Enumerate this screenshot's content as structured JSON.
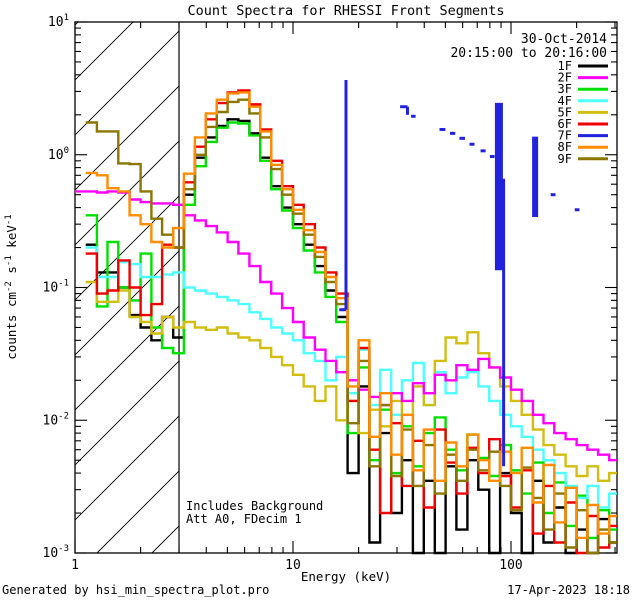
{
  "title": "Count Spectra for RHESSI Front Segments",
  "header": {
    "date": "30-Oct-2014",
    "time_range": "20:15:00 to 20:16:00"
  },
  "annotations": {
    "line1": "Includes Background",
    "line2": "Att A0, FDecim 1"
  },
  "footer": {
    "left": "Generated by hsi_min_spectra_plot.pro",
    "right": "17-Apr-2023 18:18"
  },
  "chart_data": {
    "type": "line",
    "subtype": "step-histogram-spectra",
    "x_scale": "log",
    "y_scale": "log",
    "xlabel": "Energy (keV)",
    "ylabel": "counts cm-2 s-1 keV-1",
    "ylabel_parts": [
      {
        "t": "counts cm"
      },
      {
        "t": "-2",
        "sup": true
      },
      {
        "t": " s"
      },
      {
        "t": "-1",
        "sup": true
      },
      {
        "t": " keV"
      },
      {
        "t": "-1",
        "sup": true
      }
    ],
    "xlim": [
      1,
      306
    ],
    "ylim": [
      0.001,
      10
    ],
    "x_major_ticks": [
      1,
      10,
      100
    ],
    "x_tick_labels": [
      "1",
      "10",
      "100"
    ],
    "x_minor_ticks": [
      2,
      3,
      4,
      5,
      6,
      7,
      8,
      9,
      20,
      30,
      40,
      50,
      60,
      70,
      80,
      90,
      200,
      300
    ],
    "y_tick_exponents": [
      1,
      0,
      -1,
      -2,
      -3
    ],
    "grid": false,
    "legend_position": "top-right-inside",
    "hatch_region": {
      "e_min": 1,
      "e_max": 3,
      "style": "diagonal-hatch"
    },
    "threshold_line_kev": 3,
    "energies": [
      1.0,
      1.12,
      1.26,
      1.41,
      1.58,
      1.78,
      2.0,
      2.24,
      2.51,
      2.82,
      3.16,
      3.55,
      3.98,
      4.47,
      5.01,
      5.62,
      6.31,
      7.08,
      7.94,
      8.91,
      10.0,
      11.2,
      12.6,
      14.1,
      15.8,
      17.8,
      20.0,
      22.4,
      25.1,
      28.2,
      31.6,
      35.5,
      39.8,
      44.7,
      50.1,
      56.2,
      63.1,
      70.8,
      79.4,
      89.1,
      100,
      112,
      126,
      141,
      158,
      178,
      200,
      224,
      251,
      282
    ],
    "bin_end": 306,
    "draw_order": [
      "1F",
      "3F",
      "4F",
      "5F",
      "6F",
      "2F",
      "9F",
      "8F",
      "7F"
    ],
    "series": [
      {
        "name": "1F",
        "color": "#000000",
        "values": [
          null,
          0.21,
          0.13,
          0.13,
          0.1,
          0.062,
          0.05,
          0.04,
          0.06,
          0.042,
          0.5,
          0.95,
          1.35,
          1.65,
          1.85,
          1.8,
          1.45,
          0.95,
          0.58,
          0.4,
          0.3,
          0.21,
          0.145,
          0.095,
          0.06,
          0.004,
          0.018,
          0.0012,
          0.008,
          0.002,
          0.005,
          0.001,
          0.0035,
          0.001,
          0.0045,
          0.0015,
          0.005,
          0.003,
          0.001,
          0.004,
          0.002,
          0.001,
          0.0035,
          0.0012,
          0.0022,
          0.001,
          0.0015,
          0.001,
          0.0018,
          0.0012
        ]
      },
      {
        "name": "2F",
        "color": "#FF00FF",
        "values": [
          0.53,
          0.53,
          0.52,
          0.53,
          0.52,
          0.46,
          0.44,
          0.43,
          0.43,
          0.42,
          0.35,
          0.32,
          0.29,
          0.26,
          0.22,
          0.18,
          0.145,
          0.11,
          0.09,
          0.07,
          0.055,
          0.042,
          0.034,
          0.028,
          0.023,
          0.02,
          0.017,
          0.015,
          0.013,
          0.016,
          0.014,
          0.019,
          0.016,
          0.022,
          0.02,
          0.026,
          0.024,
          0.029,
          0.025,
          0.021,
          0.017,
          0.014,
          0.011,
          0.0095,
          0.008,
          0.0072,
          0.0065,
          0.006,
          0.0055,
          0.005
        ]
      },
      {
        "name": "3F",
        "color": "#00E100",
        "values": [
          null,
          0.35,
          0.072,
          0.22,
          0.1,
          0.08,
          0.18,
          0.05,
          0.035,
          0.032,
          0.42,
          0.82,
          1.25,
          1.6,
          1.75,
          1.72,
          1.4,
          0.9,
          0.55,
          0.38,
          0.28,
          0.19,
          0.13,
          0.085,
          0.055,
          0.008,
          0.025,
          0.005,
          0.012,
          0.004,
          0.009,
          0.0045,
          0.008,
          0.0105,
          0.006,
          0.0042,
          0.0078,
          0.0052,
          0.0038,
          0.0065,
          0.0042,
          0.0028,
          0.0048,
          0.002,
          0.0034,
          0.0016,
          0.0027,
          0.0013,
          0.0021,
          0.0015
        ]
      },
      {
        "name": "4F",
        "color": "#4DFFFF",
        "values": [
          null,
          0.2,
          0.12,
          0.12,
          0.155,
          0.15,
          0.12,
          0.12,
          0.125,
          0.13,
          0.1,
          0.095,
          0.09,
          0.085,
          0.08,
          0.075,
          0.065,
          0.058,
          0.05,
          0.045,
          0.04,
          0.032,
          0.028,
          0.02,
          0.03,
          0.016,
          0.034,
          0.013,
          0.024,
          0.011,
          0.02,
          0.027,
          0.013,
          0.023,
          0.016,
          0.021,
          0.023,
          0.018,
          0.014,
          0.011,
          0.009,
          0.0075,
          0.006,
          0.005,
          0.004,
          0.0032,
          0.0026,
          0.0032,
          0.0022,
          0.0028
        ]
      },
      {
        "name": "5F",
        "color": "#D1BE11",
        "values": [
          null,
          0.11,
          0.078,
          0.078,
          0.095,
          0.06,
          0.055,
          0.045,
          0.06,
          0.05,
          0.055,
          0.05,
          0.048,
          0.05,
          0.045,
          0.042,
          0.04,
          0.035,
          0.03,
          0.026,
          0.022,
          0.018,
          0.014,
          0.018,
          0.01,
          0.014,
          0.008,
          0.012,
          0.009,
          0.014,
          0.011,
          0.018,
          0.013,
          0.028,
          0.042,
          0.038,
          0.046,
          0.032,
          0.025,
          0.018,
          0.014,
          0.011,
          0.0085,
          0.0065,
          0.0055,
          0.0045,
          0.0038,
          0.0045,
          0.0035,
          0.004
        ]
      },
      {
        "name": "6F",
        "color": "#EE0000",
        "values": [
          null,
          0.18,
          0.09,
          0.095,
          0.16,
          0.1,
          0.062,
          0.075,
          0.21,
          0.2,
          0.62,
          1.15,
          1.85,
          2.45,
          2.95,
          3.05,
          2.4,
          1.55,
          0.9,
          0.58,
          0.42,
          0.3,
          0.2,
          0.13,
          0.09,
          0.014,
          0.035,
          0.006,
          0.002,
          0.0095,
          0.0032,
          0.007,
          0.0022,
          0.0085,
          0.0048,
          0.0028,
          0.0062,
          0.004,
          0.0072,
          0.0038,
          0.0022,
          0.0042,
          0.0014,
          0.0032,
          0.0012,
          0.0024,
          0.001,
          0.0019,
          0.0011,
          0.0016
        ]
      },
      {
        "name": "7F",
        "color": "#2222DE",
        "segments": [
          {
            "t": "v",
            "e": 17.5,
            "v1": 3.66,
            "v2": 0.068,
            "w": 3
          },
          {
            "t": "h",
            "e1": 16.3,
            "e2": 17.5,
            "v": 0.068,
            "w": 3
          },
          {
            "t": "h",
            "e1": 31.0,
            "e2": 33.5,
            "v": 2.3,
            "w": 3
          },
          {
            "t": "v",
            "e": 33.5,
            "v1": 2.3,
            "v2": 2.0,
            "w": 3
          },
          {
            "t": "h",
            "e1": 34.8,
            "e2": 36.5,
            "v": 1.95,
            "w": 3
          },
          {
            "t": "h",
            "e1": 47.0,
            "e2": 50.0,
            "v": 1.55,
            "w": 3
          },
          {
            "t": "h",
            "e1": 52.5,
            "e2": 55.5,
            "v": 1.45,
            "w": 3
          },
          {
            "t": "h",
            "e1": 58.0,
            "e2": 61.5,
            "v": 1.33,
            "w": 3
          },
          {
            "t": "h",
            "e1": 64.5,
            "e2": 68.0,
            "v": 1.2,
            "w": 3
          },
          {
            "t": "h",
            "e1": 72.5,
            "e2": 76.5,
            "v": 1.07,
            "w": 3
          },
          {
            "t": "h",
            "e1": 80.0,
            "e2": 84.0,
            "v": 0.97,
            "w": 3
          },
          {
            "t": "v",
            "e": 88.0,
            "v1": 2.46,
            "v2": 0.135,
            "w": 8
          },
          {
            "t": "v",
            "e": 92.5,
            "v1": 0.66,
            "v2": 0.0045,
            "w": 3
          },
          {
            "t": "v",
            "e": 129.0,
            "v1": 1.37,
            "v2": 0.34,
            "w": 6
          },
          {
            "t": "h",
            "e1": 152.0,
            "e2": 160.0,
            "v": 0.5,
            "w": 3
          },
          {
            "t": "h",
            "e1": 196.0,
            "e2": 206.0,
            "v": 0.385,
            "w": 3
          }
        ]
      },
      {
        "name": "8F",
        "color": "#FF8C00",
        "values": [
          null,
          0.73,
          0.7,
          0.56,
          0.53,
          0.35,
          0.3,
          0.22,
          0.2,
          0.28,
          0.72,
          1.35,
          2.05,
          2.6,
          2.9,
          2.95,
          2.3,
          1.5,
          0.84,
          0.55,
          0.385,
          0.27,
          0.185,
          0.12,
          0.083,
          0.018,
          0.04,
          0.0075,
          0.016,
          0.0055,
          0.011,
          0.0042,
          0.0085,
          0.0035,
          0.0068,
          0.0045,
          0.0078,
          0.005,
          0.0035,
          0.0058,
          0.004,
          0.0062,
          0.0024,
          0.0046,
          0.0017,
          0.0031,
          0.0013,
          0.0023,
          0.0014,
          0.0019
        ]
      },
      {
        "name": "9F",
        "color": "#8A7600",
        "values": [
          null,
          1.75,
          1.5,
          1.5,
          0.86,
          0.85,
          0.53,
          0.33,
          0.25,
          0.2,
          0.55,
          1.0,
          1.62,
          2.1,
          2.5,
          2.6,
          2.05,
          1.35,
          0.78,
          0.5,
          0.36,
          0.25,
          0.17,
          0.11,
          0.075,
          0.0095,
          0.028,
          0.0045,
          0.013,
          0.0038,
          0.0085,
          0.0032,
          0.0065,
          0.0028,
          0.0055,
          0.0035,
          0.006,
          0.0042,
          0.0058,
          0.0032,
          0.0021,
          0.0044,
          0.0026,
          0.0015,
          0.0028,
          0.0011,
          0.0021,
          0.001,
          0.0015,
          0.0012
        ]
      }
    ]
  }
}
